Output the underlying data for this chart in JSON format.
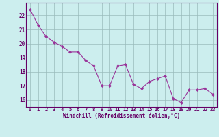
{
  "x": [
    0,
    1,
    2,
    3,
    4,
    5,
    6,
    7,
    8,
    9,
    10,
    11,
    12,
    13,
    14,
    15,
    16,
    17,
    18,
    19,
    20,
    21,
    22,
    23
  ],
  "y": [
    22.4,
    21.3,
    20.5,
    20.1,
    19.8,
    19.4,
    19.4,
    18.8,
    18.4,
    17.0,
    17.0,
    18.4,
    18.5,
    17.1,
    16.8,
    17.3,
    17.5,
    17.7,
    16.1,
    15.8,
    16.7,
    16.7,
    16.8,
    16.4
  ],
  "line_color": "#993399",
  "marker": "D",
  "marker_size": 2,
  "bg_color": "#cceeee",
  "grid_color": "#99bbbb",
  "xlabel": "Windchill (Refroidissement éolien,°C)",
  "xlabel_color": "#660066",
  "tick_color": "#660066",
  "spine_color": "#660066",
  "ylim": [
    15.5,
    22.9
  ],
  "xlim": [
    -0.5,
    23.5
  ],
  "yticks": [
    16,
    17,
    18,
    19,
    20,
    21,
    22
  ],
  "xticks": [
    0,
    1,
    2,
    3,
    4,
    5,
    6,
    7,
    8,
    9,
    10,
    11,
    12,
    13,
    14,
    15,
    16,
    17,
    18,
    19,
    20,
    21,
    22,
    23
  ]
}
